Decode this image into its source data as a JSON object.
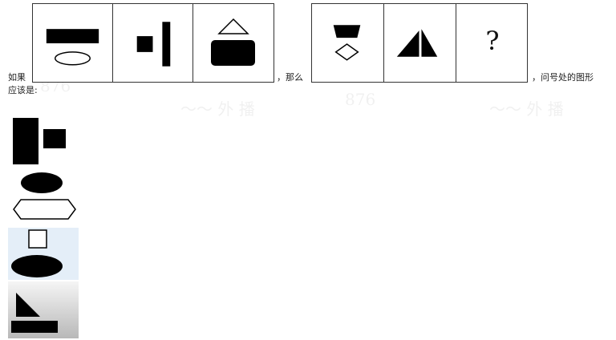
{
  "question": {
    "prefix": "如果",
    "middle": "，那么",
    "suffix": "，问号处的图形",
    "line2": "应该是:"
  },
  "panel_left": {
    "cells": [
      {
        "icon": "rectangle-over-ellipse-icon"
      },
      {
        "icon": "square-beside-bar-icon"
      },
      {
        "icon": "triangle-over-rounded-rect-icon"
      }
    ]
  },
  "panel_right": {
    "cells": [
      {
        "icon": "trapezoid-over-diamond-icon"
      },
      {
        "icon": "double-triangle-icon"
      },
      {
        "icon": "question-mark",
        "text": "?"
      }
    ]
  },
  "options": [
    {
      "icon": "tall-rect-with-small-square-icon"
    },
    {
      "icon": "ellipse-over-hexagon-icon"
    },
    {
      "icon": "square-over-ellipse-icon"
    },
    {
      "icon": "triangle-over-rectangle-icon"
    }
  ],
  "colors": {
    "fill": "#000000",
    "border": "#333333",
    "option3_bg": "#e4eef8",
    "option4_bg_top": "#f5f5f5",
    "option4_bg_bottom": "#b8b8b8"
  }
}
